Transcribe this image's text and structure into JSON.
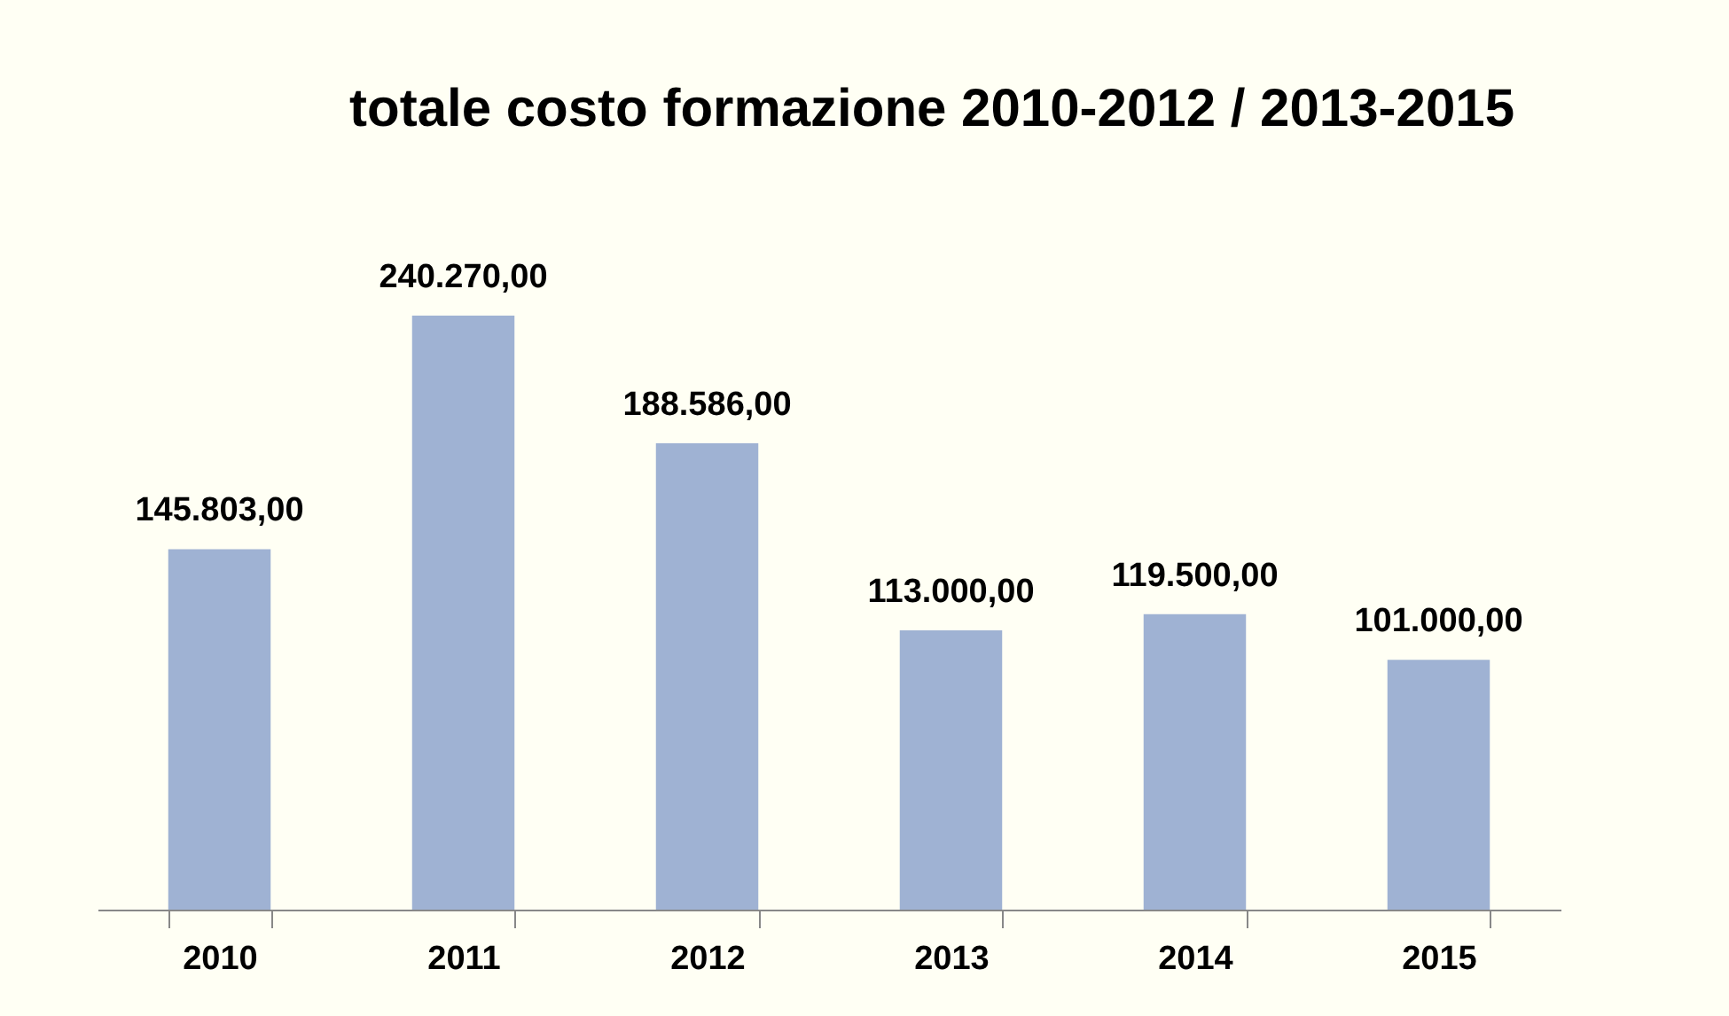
{
  "chart_data": {
    "type": "bar",
    "title": "totale costo formazione 2010-2012 / 2013-2015",
    "categories": [
      "2010",
      "2011",
      "2012",
      "2013",
      "2014",
      "2015"
    ],
    "values": [
      145803,
      240270,
      188586,
      113000,
      119500,
      101000
    ],
    "value_labels": [
      "145.803,00",
      "240.270,00",
      "188.586,00",
      "113.000,00",
      "119.500,00",
      "101.000,00"
    ],
    "color": "#9fb2d3"
  }
}
